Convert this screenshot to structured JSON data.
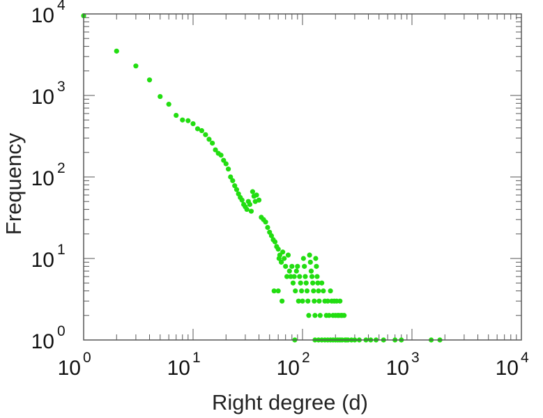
{
  "chart_data": {
    "type": "scatter",
    "title": "",
    "xlabel": "Right degree (d)",
    "ylabel": "Frequency",
    "x_scale": "log",
    "y_scale": "log",
    "xlim": [
      1,
      10000
    ],
    "ylim": [
      1,
      10000
    ],
    "x_ticks": [
      {
        "base": "10",
        "exp": "0"
      },
      {
        "base": "10",
        "exp": "1"
      },
      {
        "base": "10",
        "exp": "2"
      },
      {
        "base": "10",
        "exp": "3"
      },
      {
        "base": "10",
        "exp": "4"
      }
    ],
    "y_ticks": [
      {
        "base": "10",
        "exp": "0"
      },
      {
        "base": "10",
        "exp": "1"
      },
      {
        "base": "10",
        "exp": "2"
      },
      {
        "base": "10",
        "exp": "3"
      },
      {
        "base": "10",
        "exp": "4"
      }
    ],
    "grid": false,
    "legend": "none",
    "marker_color": "#22dd11",
    "points": [
      [
        1,
        9500
      ],
      [
        2,
        3500
      ],
      [
        3,
        2300
      ],
      [
        4,
        1550
      ],
      [
        5,
        970
      ],
      [
        6,
        780
      ],
      [
        7,
        570
      ],
      [
        8,
        500
      ],
      [
        9,
        490
      ],
      [
        10,
        450
      ],
      [
        11,
        390
      ],
      [
        12,
        370
      ],
      [
        13,
        330
      ],
      [
        14,
        290
      ],
      [
        15,
        260
      ],
      [
        16,
        215
      ],
      [
        17,
        195
      ],
      [
        18,
        185
      ],
      [
        19,
        160
      ],
      [
        20,
        145
      ],
      [
        21,
        125
      ],
      [
        22,
        100
      ],
      [
        23,
        90
      ],
      [
        24,
        78
      ],
      [
        25,
        70
      ],
      [
        26,
        62
      ],
      [
        27,
        56
      ],
      [
        28,
        52
      ],
      [
        29,
        46
      ],
      [
        30,
        43
      ],
      [
        31,
        40
      ],
      [
        32,
        50
      ],
      [
        33,
        46
      ],
      [
        34,
        38
      ],
      [
        35,
        66
      ],
      [
        36,
        58
      ],
      [
        37,
        50
      ],
      [
        38,
        60
      ],
      [
        40,
        52
      ],
      [
        42,
        32
      ],
      [
        44,
        30
      ],
      [
        46,
        28
      ],
      [
        48,
        24
      ],
      [
        50,
        21
      ],
      [
        52,
        19
      ],
      [
        54,
        17
      ],
      [
        56,
        16
      ],
      [
        58,
        14
      ],
      [
        60,
        13
      ],
      [
        61,
        10
      ],
      [
        62,
        11
      ],
      [
        64,
        9
      ],
      [
        66,
        12
      ],
      [
        68,
        10
      ],
      [
        70,
        8
      ],
      [
        72,
        6
      ],
      [
        74,
        11
      ],
      [
        76,
        7
      ],
      [
        78,
        6
      ],
      [
        80,
        8
      ],
      [
        82,
        5
      ],
      [
        84,
        6
      ],
      [
        86,
        4
      ],
      [
        88,
        7
      ],
      [
        90,
        8
      ],
      [
        92,
        3
      ],
      [
        94,
        6
      ],
      [
        96,
        5
      ],
      [
        98,
        4
      ],
      [
        100,
        3
      ],
      [
        102,
        10
      ],
      [
        104,
        8
      ],
      [
        106,
        6
      ],
      [
        108,
        5
      ],
      [
        110,
        4
      ],
      [
        112,
        3
      ],
      [
        114,
        2
      ],
      [
        116,
        11
      ],
      [
        118,
        9
      ],
      [
        120,
        7
      ],
      [
        122,
        6
      ],
      [
        124,
        5
      ],
      [
        126,
        4
      ],
      [
        128,
        3
      ],
      [
        130,
        2
      ],
      [
        132,
        10
      ],
      [
        134,
        8
      ],
      [
        136,
        6
      ],
      [
        138,
        5
      ],
      [
        140,
        4
      ],
      [
        142,
        3
      ],
      [
        145,
        2
      ],
      [
        150,
        5
      ],
      [
        155,
        4
      ],
      [
        160,
        3
      ],
      [
        165,
        2
      ],
      [
        170,
        3
      ],
      [
        175,
        2
      ],
      [
        180,
        4
      ],
      [
        185,
        3
      ],
      [
        190,
        2
      ],
      [
        195,
        3
      ],
      [
        200,
        2
      ],
      [
        205,
        3
      ],
      [
        210,
        2
      ],
      [
        215,
        2
      ],
      [
        220,
        3
      ],
      [
        225,
        2
      ],
      [
        230,
        2
      ],
      [
        240,
        2
      ],
      [
        250,
        1
      ],
      [
        60,
        4
      ],
      [
        65,
        3
      ],
      [
        55,
        4
      ],
      [
        85,
        1
      ],
      [
        130,
        1
      ],
      [
        140,
        1
      ],
      [
        150,
        1
      ],
      [
        160,
        1
      ],
      [
        170,
        1
      ],
      [
        180,
        1
      ],
      [
        190,
        1
      ],
      [
        200,
        1
      ],
      [
        210,
        1
      ],
      [
        220,
        1
      ],
      [
        230,
        1
      ],
      [
        245,
        1
      ],
      [
        260,
        1
      ],
      [
        280,
        1
      ],
      [
        300,
        1
      ],
      [
        330,
        1
      ],
      [
        380,
        1
      ],
      [
        420,
        1
      ],
      [
        470,
        1
      ],
      [
        550,
        1
      ],
      [
        700,
        1
      ],
      [
        800,
        1
      ],
      [
        1500,
        1
      ],
      [
        1800,
        1
      ]
    ]
  }
}
